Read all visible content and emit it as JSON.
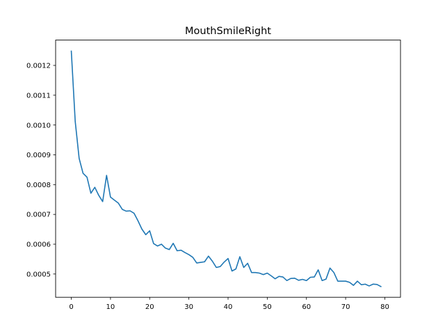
{
  "chart_data": {
    "type": "line",
    "title": "MouthSmileRight",
    "xlabel": "",
    "ylabel": "",
    "xlim": [
      -4,
      84
    ],
    "ylim": [
      0.000422,
      0.001285
    ],
    "grid": false,
    "legend": "none",
    "x_ticks": [
      0,
      10,
      20,
      30,
      40,
      50,
      60,
      70,
      80
    ],
    "x_tick_labels": [
      "0",
      "10",
      "20",
      "30",
      "40",
      "50",
      "60",
      "70",
      "80"
    ],
    "y_ticks": [
      0.0005,
      0.0006,
      0.0007,
      0.0008,
      0.0009,
      0.001,
      0.0011,
      0.0012
    ],
    "y_tick_labels": [
      "0.0005",
      "0.0006",
      "0.0007",
      "0.0008",
      "0.0009",
      "0.0010",
      "0.0011",
      "0.0012"
    ],
    "series": [
      {
        "color": "#1f77b4",
        "x": [
          0,
          1,
          2,
          3,
          4,
          5,
          6,
          7,
          8,
          9,
          10,
          11,
          12,
          13,
          14,
          15,
          16,
          17,
          18,
          19,
          20,
          21,
          22,
          23,
          24,
          25,
          26,
          27,
          28,
          29,
          30,
          31,
          32,
          33,
          34,
          35,
          36,
          37,
          38,
          39,
          40,
          41,
          42,
          43,
          44,
          45,
          46,
          47,
          48,
          49,
          50,
          51,
          52,
          53,
          54,
          55,
          56,
          57,
          58,
          59,
          60,
          61,
          62,
          63,
          64,
          65,
          66,
          67,
          68,
          69,
          70,
          71,
          72,
          73,
          74,
          75,
          76,
          77,
          78,
          79
        ],
        "values": [
          0.001248,
          0.001012,
          0.000888,
          0.000838,
          0.000825,
          0.000771,
          0.000791,
          0.000764,
          0.000743,
          0.000831,
          0.000758,
          0.000748,
          0.000738,
          0.000717,
          0.000711,
          0.000712,
          0.000704,
          0.000679,
          0.000651,
          0.000632,
          0.000645,
          0.000602,
          0.000594,
          0.0006,
          0.000587,
          0.000582,
          0.000603,
          0.000578,
          0.00058,
          0.000572,
          0.000565,
          0.000556,
          0.000537,
          0.000539,
          0.000541,
          0.00056,
          0.000543,
          0.000522,
          0.000525,
          0.00054,
          0.000552,
          0.00051,
          0.000517,
          0.000558,
          0.000522,
          0.000536,
          0.000505,
          0.000505,
          0.000503,
          0.000498,
          0.000503,
          0.000494,
          0.000484,
          0.000492,
          0.00049,
          0.000478,
          0.000485,
          0.000486,
          0.000479,
          0.000482,
          0.000478,
          0.000489,
          0.00049,
          0.000514,
          0.000478,
          0.000483,
          0.00052,
          0.000505,
          0.000476,
          0.000476,
          0.000476,
          0.000472,
          0.000462,
          0.000476,
          0.000464,
          0.000466,
          0.00046,
          0.000466,
          0.000465,
          0.000458
        ]
      }
    ]
  }
}
